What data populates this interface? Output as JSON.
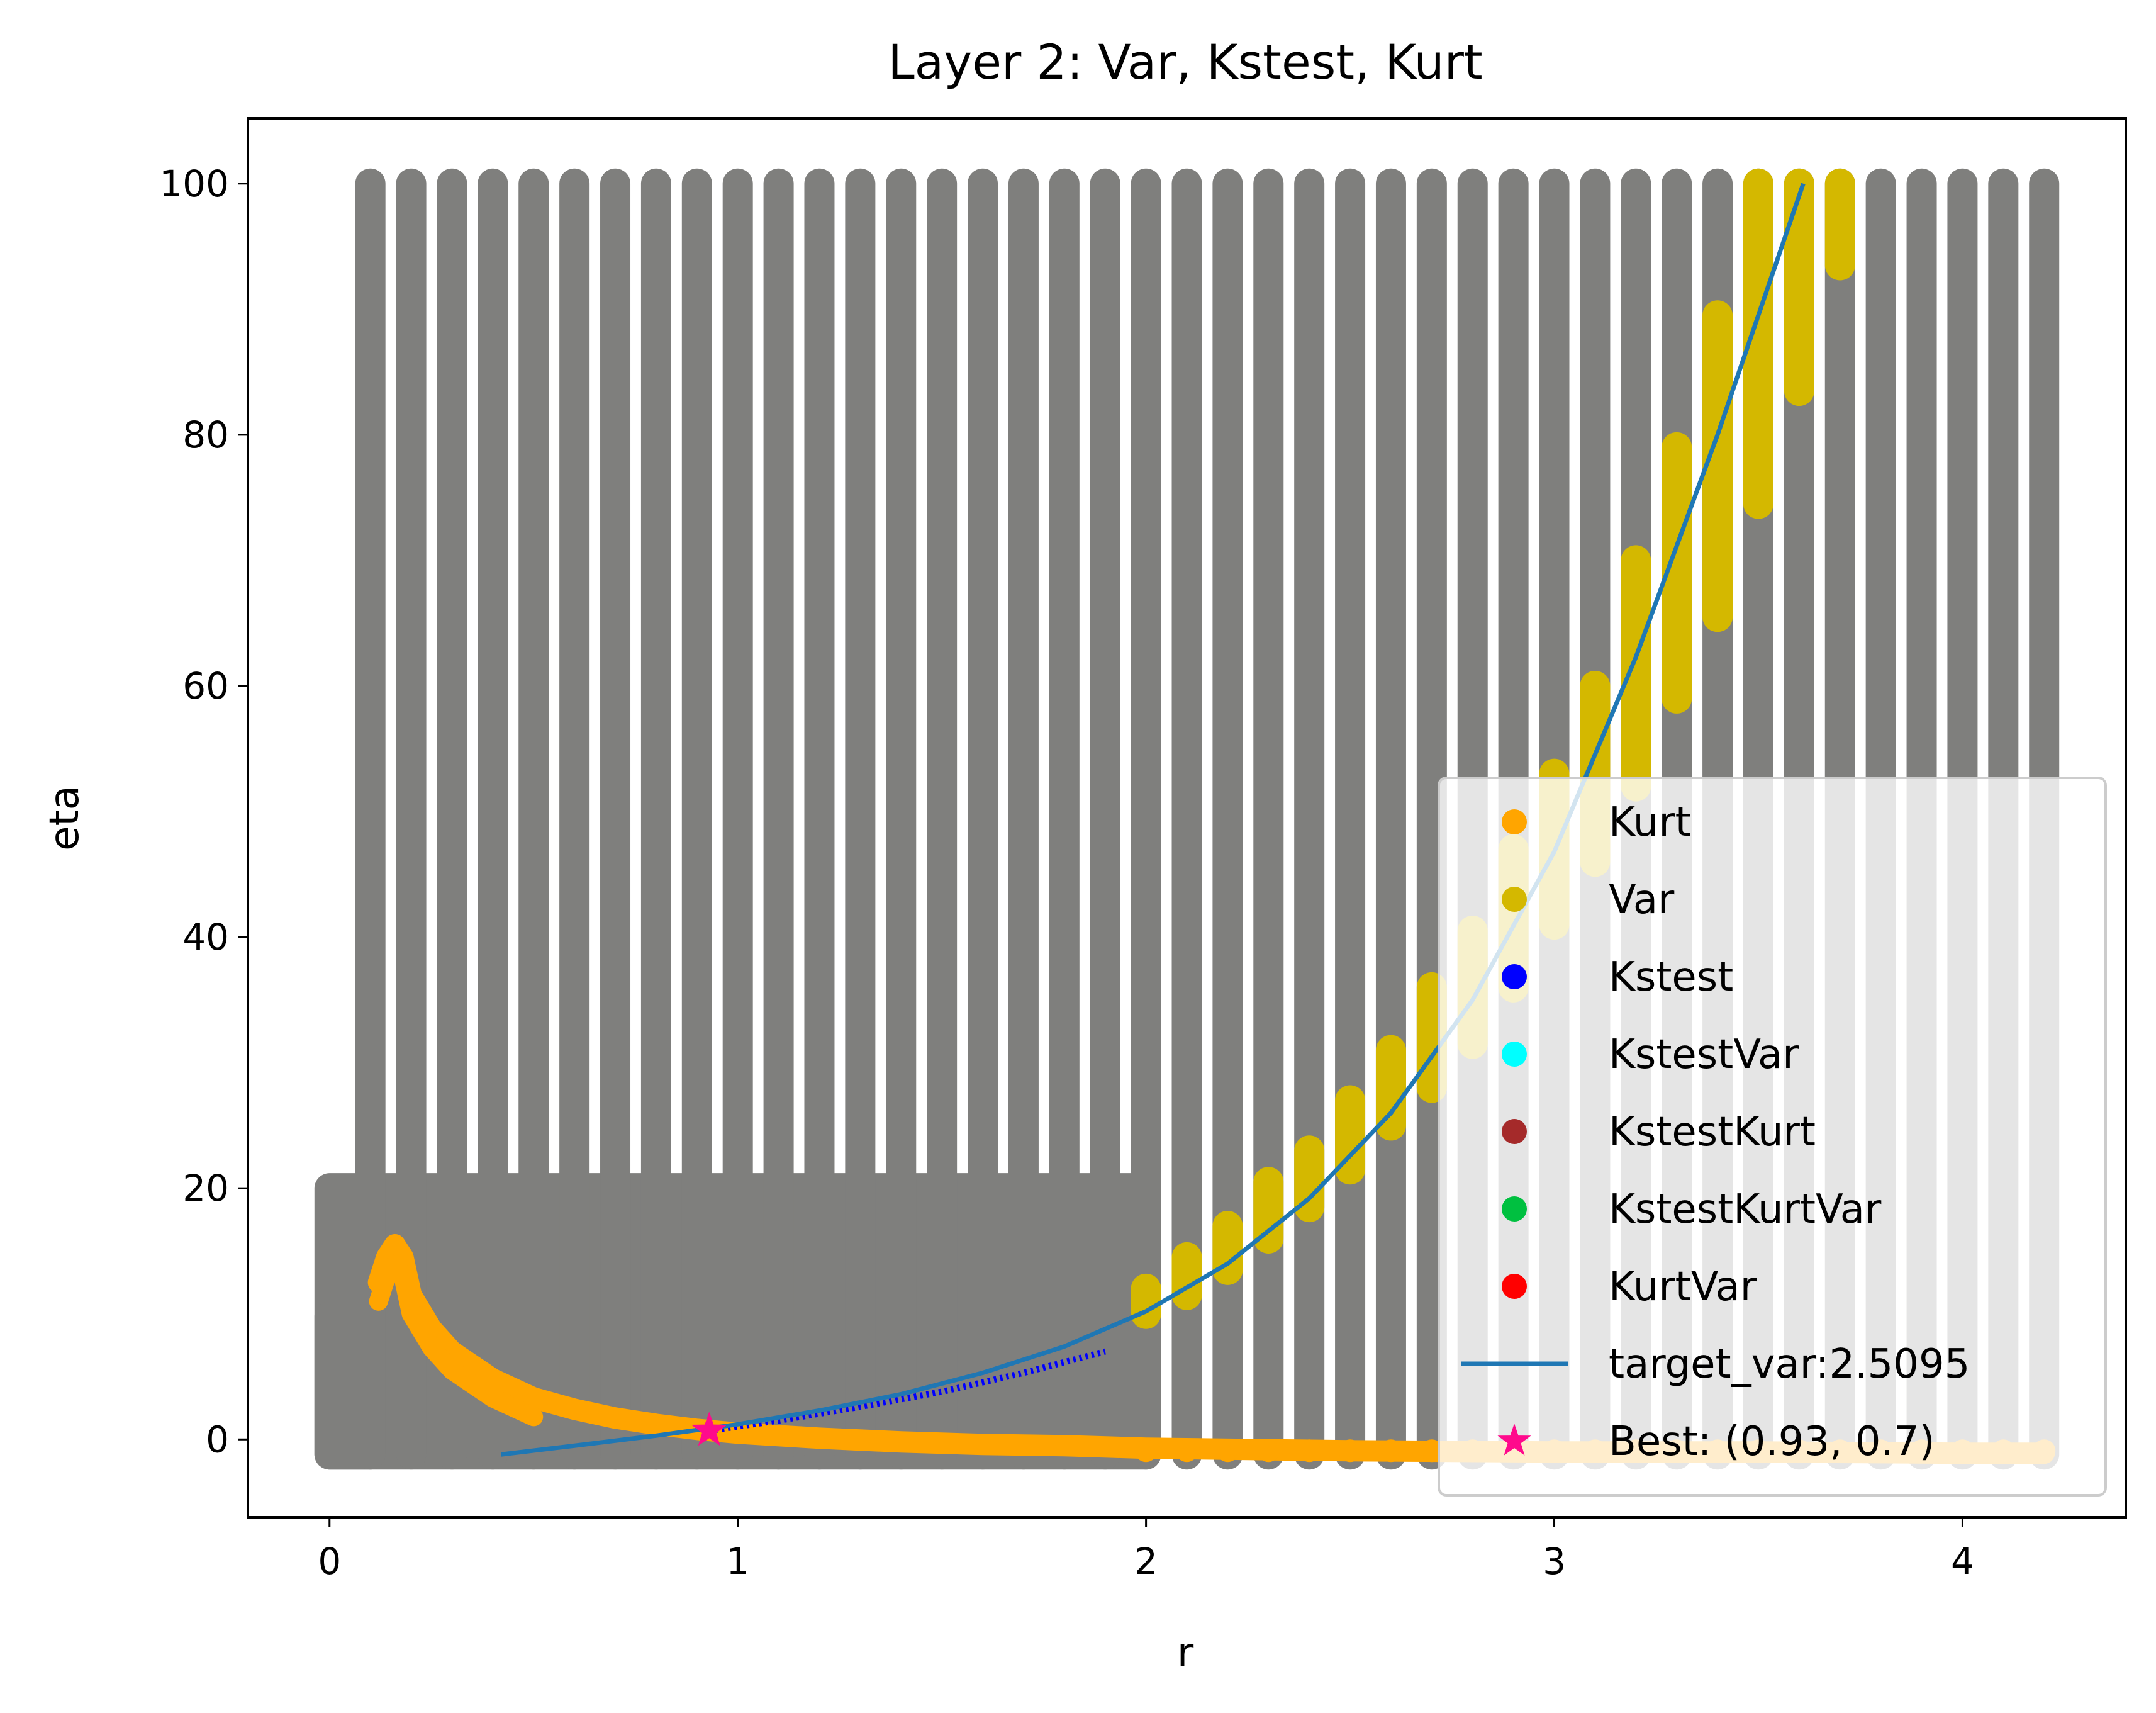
{
  "chart_data": {
    "type": "scatter",
    "title": "Layer 2: Var, Kstest, Kurt",
    "xlabel": "r",
    "ylabel": "eta",
    "xlim": [
      -0.2,
      4.4
    ],
    "ylim": [
      -6.2,
      105.2
    ],
    "x_ticks": [
      0,
      1,
      2,
      3,
      4
    ],
    "y_ticks": [
      0,
      20,
      40,
      60,
      80,
      100
    ],
    "grid": false,
    "legend_position": "lower right",
    "colors": {
      "grid_points": "#7f7f7d",
      "kurt": "#ffa500",
      "var": "#d4b800",
      "kstest": "#0000ff",
      "kstestvar": "#00ffff",
      "kstestkurt": "#a52a2a",
      "kstestkurtvar": "#00c040",
      "kurtvar": "#ff0000",
      "target_var": "#1f77b4",
      "best": "#ff0a8c"
    },
    "grid_columns": {
      "fine_region": {
        "r_min": 0.0,
        "r_max": 2.0,
        "eta_min": -1.2,
        "eta_max": 20.0
      },
      "dense_region": {
        "r_min": 0.0,
        "r_max": 0.1,
        "eta_min": -1.2,
        "eta_max": 9.8
      },
      "coarse_columns": {
        "r_values": [
          0.1,
          0.2,
          0.3,
          0.4,
          0.5,
          0.6,
          0.7,
          0.8,
          0.9,
          1.0,
          1.1,
          1.2,
          1.3,
          1.4,
          1.5,
          1.6,
          1.7,
          1.8,
          1.9,
          2.0,
          2.1,
          2.2,
          2.3,
          2.4,
          2.5,
          2.6,
          2.7,
          2.8,
          2.9,
          3.0,
          3.1,
          3.2,
          3.3,
          3.4,
          3.5,
          3.6,
          3.7,
          3.8,
          3.9,
          4.0,
          4.1,
          4.2
        ],
        "eta_min": -1.2,
        "eta_max": 100.0
      }
    },
    "var_segments": [
      {
        "r": 2.0,
        "eta_from": 10.0,
        "eta_to": 12.0
      },
      {
        "r": 2.1,
        "eta_from": 11.5,
        "eta_to": 14.5
      },
      {
        "r": 2.2,
        "eta_from": 13.5,
        "eta_to": 17.0
      },
      {
        "r": 2.3,
        "eta_from": 16.0,
        "eta_to": 20.5
      },
      {
        "r": 2.4,
        "eta_from": 18.5,
        "eta_to": 23.0
      },
      {
        "r": 2.5,
        "eta_from": 21.5,
        "eta_to": 27.0
      },
      {
        "r": 2.6,
        "eta_from": 25.0,
        "eta_to": 31.0
      },
      {
        "r": 2.7,
        "eta_from": 28.0,
        "eta_to": 36.0
      },
      {
        "r": 2.8,
        "eta_from": 31.5,
        "eta_to": 40.5
      },
      {
        "r": 2.9,
        "eta_from": 36.0,
        "eta_to": 47.0
      },
      {
        "r": 3.0,
        "eta_from": 41.0,
        "eta_to": 53.0
      },
      {
        "r": 3.1,
        "eta_from": 46.0,
        "eta_to": 60.0
      },
      {
        "r": 3.2,
        "eta_from": 52.0,
        "eta_to": 70.0
      },
      {
        "r": 3.3,
        "eta_from": 59.0,
        "eta_to": 79.0
      },
      {
        "r": 3.4,
        "eta_from": 65.5,
        "eta_to": 89.5
      },
      {
        "r": 3.5,
        "eta_from": 74.5,
        "eta_to": 100.0
      },
      {
        "r": 3.6,
        "eta_from": 83.5,
        "eta_to": 100.0
      },
      {
        "r": 3.7,
        "eta_from": 93.5,
        "eta_to": 100.0
      }
    ],
    "kurt_curve": {
      "r": [
        0.12,
        0.14,
        0.16,
        0.18,
        0.2,
        0.25,
        0.3,
        0.4,
        0.5,
        0.6,
        0.7,
        0.8,
        0.9,
        1.0,
        1.2,
        1.4,
        1.6,
        1.8,
        2.0,
        2.5,
        3.0,
        3.5,
        4.0,
        4.2
      ],
      "eta": [
        12.5,
        14.5,
        15.5,
        14.5,
        11.5,
        8.8,
        7.0,
        4.8,
        3.3,
        2.4,
        1.7,
        1.2,
        0.8,
        0.5,
        0.1,
        -0.2,
        -0.4,
        -0.5,
        -0.7,
        -0.9,
        -1.0,
        -1.0,
        -1.1,
        -1.1
      ]
    },
    "kstest_curve": {
      "r": [
        0.93,
        1.1,
        1.3,
        1.5,
        1.7,
        1.9
      ],
      "eta": [
        0.7,
        1.5,
        2.6,
        3.8,
        5.3,
        7.0
      ]
    },
    "target_var_line": {
      "label": "target_var:2.5095",
      "r": [
        0.42,
        0.6,
        0.8,
        1.0,
        1.2,
        1.4,
        1.6,
        1.8,
        2.0,
        2.2,
        2.4,
        2.6,
        2.8,
        3.0,
        3.2,
        3.4,
        3.61
      ],
      "eta": [
        -1.2,
        -0.5,
        0.3,
        1.2,
        2.3,
        3.6,
        5.3,
        7.4,
        10.2,
        14.0,
        19.2,
        26.0,
        35.0,
        46.8,
        62.3,
        80.0,
        100.0
      ]
    },
    "best_point": {
      "r": 0.93,
      "eta": 0.7
    },
    "legend": [
      {
        "label": "Kurt",
        "marker": "dot",
        "color_key": "kurt"
      },
      {
        "label": "Var",
        "marker": "dot",
        "color_key": "var"
      },
      {
        "label": "Kstest",
        "marker": "dot",
        "color_key": "kstest"
      },
      {
        "label": "KstestVar",
        "marker": "dot",
        "color_key": "kstestvar"
      },
      {
        "label": "KstestKurt",
        "marker": "dot",
        "color_key": "kstestkurt"
      },
      {
        "label": "KstestKurtVar",
        "marker": "dot",
        "color_key": "kstestkurtvar"
      },
      {
        "label": "KurtVar",
        "marker": "dot",
        "color_key": "kurtvar"
      },
      {
        "label": "target_var:2.5095",
        "marker": "line",
        "color_key": "target_var"
      },
      {
        "label": "Best: (0.93, 0.7)",
        "marker": "star",
        "color_key": "best"
      }
    ]
  }
}
